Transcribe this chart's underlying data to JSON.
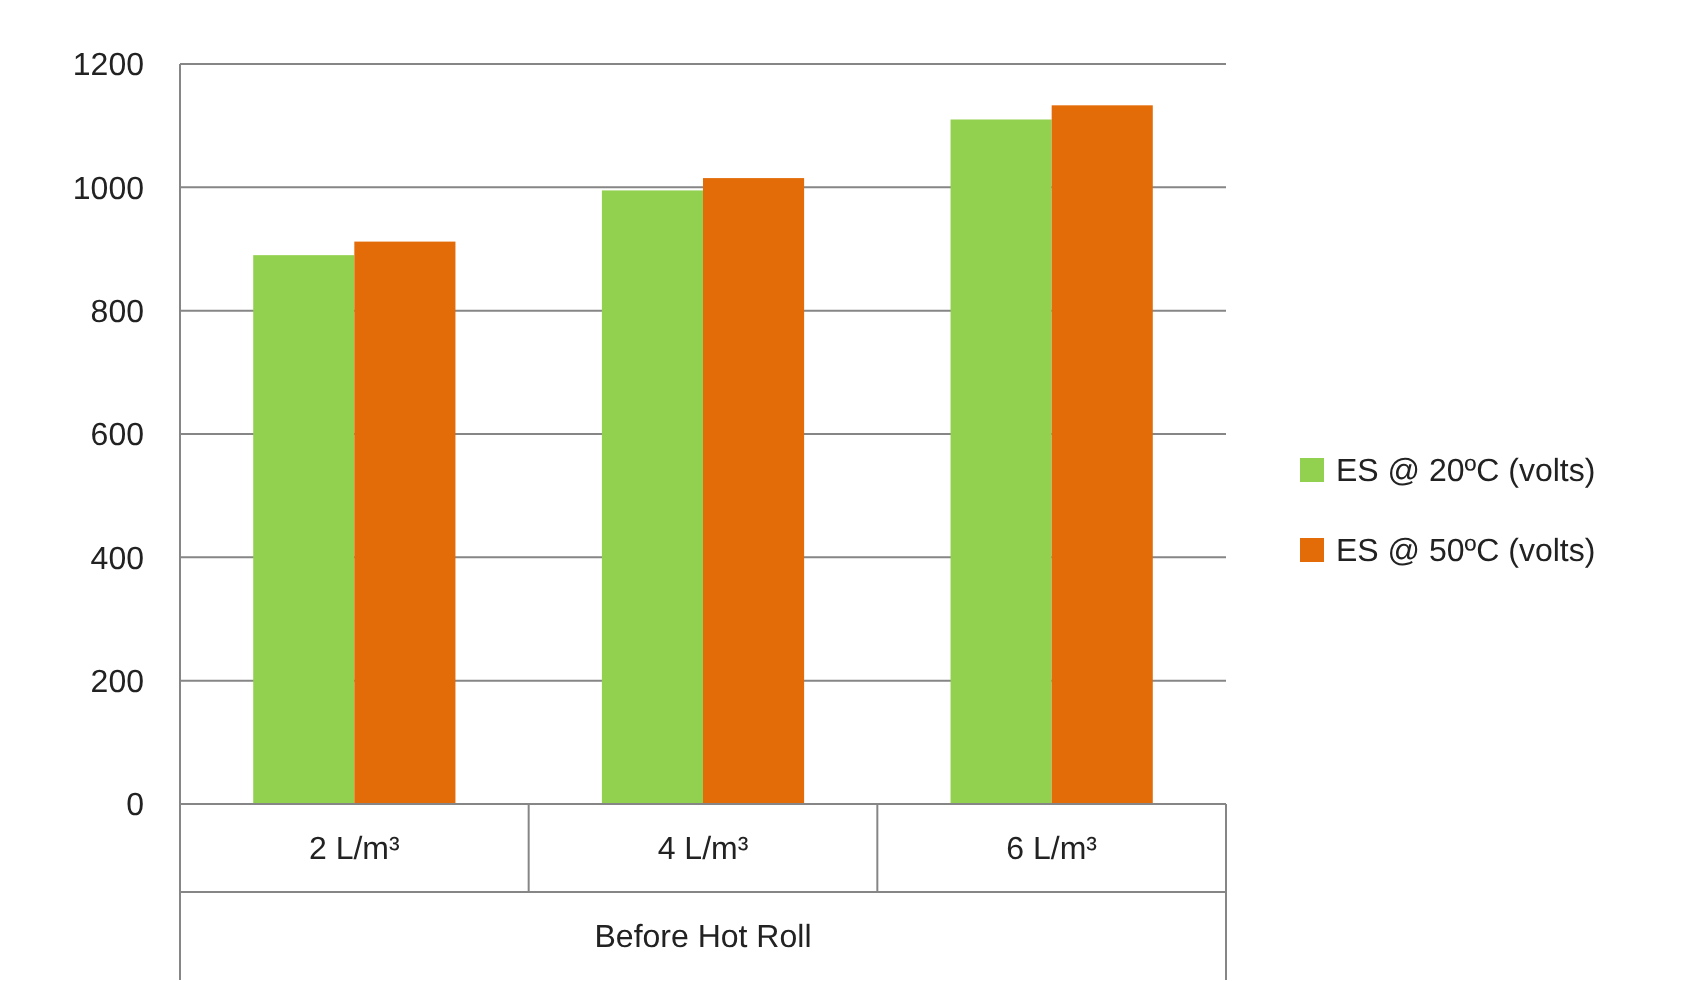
{
  "chart_data": {
    "type": "bar",
    "xlabel": "Before Hot Roll",
    "categories": [
      "2 L/m³",
      "4 L/m³",
      "6 L/m³"
    ],
    "series": [
      {
        "name": "ES @ 20ºC (volts)",
        "color": "#92d050",
        "values": [
          890,
          995,
          1110
        ]
      },
      {
        "name": "ES @ 50ºC (volts)",
        "color": "#e36c09",
        "values": [
          912,
          1015,
          1133
        ]
      }
    ],
    "ylim": [
      0,
      1200
    ],
    "yticks": [
      0,
      200,
      400,
      600,
      800,
      1000,
      1200
    ],
    "grid": "y",
    "legend": "right"
  }
}
